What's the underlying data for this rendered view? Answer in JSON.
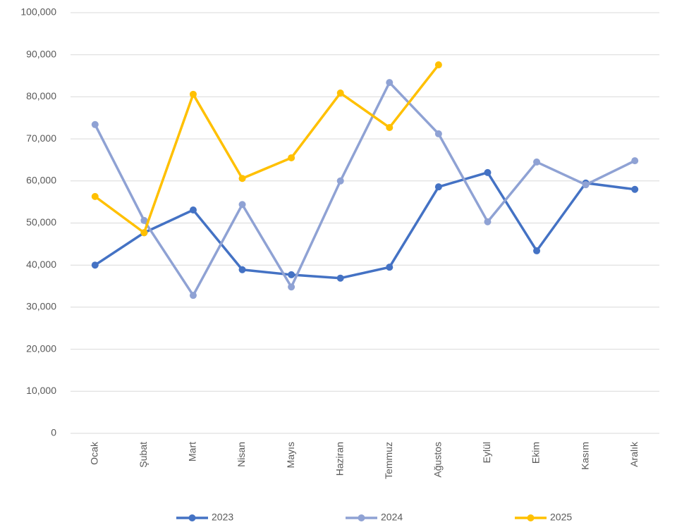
{
  "chart_data": {
    "type": "line",
    "categories": [
      "Ocak",
      "Şubat",
      "Mart",
      "Nisan",
      "Mayıs",
      "Haziran",
      "Temmuz",
      "Ağustos",
      "Eylül",
      "Ekim",
      "Kasım",
      "Aralık"
    ],
    "series": [
      {
        "name": "2023",
        "color": "#4472c4",
        "values": [
          40000,
          47700,
          53100,
          38900,
          37700,
          36900,
          39500,
          58600,
          62000,
          43400,
          59500,
          58000
        ]
      },
      {
        "name": "2024",
        "color": "#8fa2d4",
        "values": [
          73400,
          50600,
          32800,
          54400,
          34800,
          60000,
          83400,
          71200,
          50300,
          64500,
          59100,
          64800
        ]
      },
      {
        "name": "2025",
        "color": "#ffc000",
        "values": [
          56300,
          47700,
          80600,
          60600,
          65500,
          80900,
          72700,
          87600,
          null,
          null,
          null,
          null
        ]
      }
    ],
    "ylim": [
      0,
      100000
    ],
    "yticks": [
      0,
      {
        "value": 10000,
        "label": "10,000"
      },
      {
        "value": 20000,
        "label": "20,000"
      },
      {
        "value": 30000,
        "label": "30,000"
      },
      {
        "value": 40000,
        "label": "40,000"
      },
      {
        "value": 50000,
        "label": "50,000"
      },
      {
        "value": 60000,
        "label": "60,000"
      },
      {
        "value": 70000,
        "label": "70,000"
      },
      {
        "value": 80000,
        "label": "80,000"
      },
      {
        "value": 90000,
        "label": "90,000"
      },
      {
        "value": 100000,
        "label": "100,000"
      }
    ],
    "grid": true,
    "legend": "bottom"
  }
}
